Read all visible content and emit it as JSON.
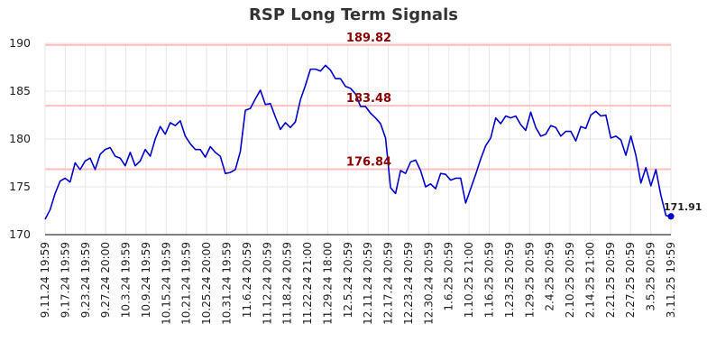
{
  "title": "RSP Long Term Signals",
  "colors": {
    "line": "#0000cc",
    "signal_line": "#ffbfbf",
    "signal_text": "#8b0000",
    "grid": "#e6e6e6",
    "axis": "#000000",
    "marker": "#0000cc"
  },
  "chart_data": {
    "type": "line",
    "title": "RSP Long Term Signals",
    "xlabel": "",
    "ylabel": "",
    "ylim": [
      170,
      190
    ],
    "yticks": [
      "170",
      "175",
      "180",
      "185",
      "190"
    ],
    "grid": true,
    "x_tick_labels": [
      "9.11.24 19:59",
      "9.17.24 19:59",
      "9.23.24 19:59",
      "9.27.24 20:00",
      "10.3.24 19:59",
      "10.9.24 19:59",
      "10.15.24 19:59",
      "10.21.24 19:59",
      "10.25.24 20:00",
      "10.31.24 19:59",
      "11.6.24 20:59",
      "11.12.24 20:59",
      "11.18.24 20:59",
      "11.22.24 21:00",
      "11.29.24 18:00",
      "12.5.24 20:59",
      "12.11.24 20:59",
      "12.17.24 20:59",
      "12.23.24 20:59",
      "12.30.24 20:59",
      "1.6.25 20:59",
      "1.10.25 21:00",
      "1.16.25 20:59",
      "1.23.25 20:59",
      "1.29.25 20:59",
      "2.4.25 20:59",
      "2.10.25 20:59",
      "2.14.25 21:00",
      "2.21.25 20:59",
      "2.27.25 20:59",
      "3.5.25 20:59",
      "3.11.25 19:59"
    ],
    "signals": [
      {
        "label": "189.82",
        "value": 189.82
      },
      {
        "label": "183.48",
        "value": 183.48
      },
      {
        "label": "176.84",
        "value": 176.84
      }
    ],
    "last_value_label": "171.91",
    "series": [
      {
        "values": [
          171.6,
          172.6,
          174.3,
          175.6,
          175.9,
          175.5,
          177.5,
          176.8,
          177.7,
          178.0,
          176.8,
          178.4,
          178.9,
          179.1,
          178.2,
          178.0,
          177.2,
          178.6,
          177.2,
          177.7,
          178.9,
          178.2,
          180.0,
          181.3,
          180.5,
          181.7,
          181.4,
          181.9,
          180.3,
          179.5,
          178.9,
          178.9,
          178.1,
          179.2,
          178.6,
          178.2,
          176.4,
          176.5,
          176.8,
          178.7,
          183.0,
          183.2,
          184.2,
          185.1,
          183.6,
          183.7,
          182.3,
          181.0,
          181.7,
          181.2,
          181.8,
          184.1,
          185.6,
          187.3,
          187.3,
          187.1,
          187.7,
          187.2,
          186.3,
          186.3,
          185.5,
          185.3,
          184.7,
          183.4,
          183.4,
          182.7,
          182.2,
          181.6,
          180.1,
          174.9,
          174.3,
          176.7,
          176.4,
          177.6,
          177.8,
          176.7,
          175.0,
          175.3,
          174.8,
          176.4,
          176.3,
          175.7,
          175.9,
          175.9,
          173.3,
          174.8,
          176.3,
          177.9,
          179.3,
          180.1,
          182.2,
          181.6,
          182.4,
          182.2,
          182.4,
          181.5,
          180.9,
          182.8,
          181.2,
          180.3,
          180.5,
          181.4,
          181.2,
          180.3,
          180.8,
          180.8,
          179.8,
          181.3,
          181.1,
          182.5,
          182.9,
          182.4,
          182.5,
          180.1,
          180.3,
          179.9,
          178.3,
          180.3,
          178.3,
          175.4,
          177.0,
          175.1,
          176.8,
          174.1,
          172.0,
          171.91
        ]
      }
    ]
  }
}
